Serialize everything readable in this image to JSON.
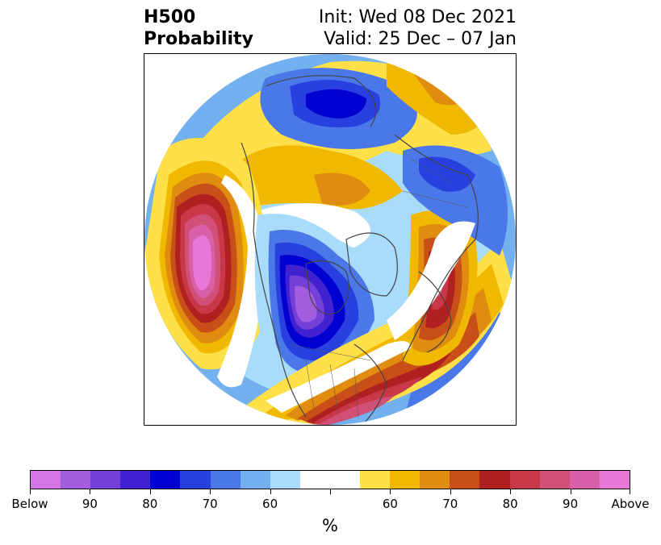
{
  "title": {
    "left_line1": "H500",
    "left_line2": "Probability",
    "right_line1": "Init: Wed 08 Dec 2021",
    "right_line2": "Valid: 25 Dec – 07 Jan"
  },
  "colorbar": {
    "unit": "%",
    "tick_labels": [
      "Below",
      "90",
      "80",
      "70",
      "60",
      "",
      "60",
      "70",
      "80",
      "90",
      "Above"
    ],
    "colors": [
      "#d575e8",
      "#a35ee0",
      "#7540d8",
      "#4222d0",
      "#0000d0",
      "#2840e0",
      "#4a78e8",
      "#72b0f0",
      "#a8dcfa",
      "#ffffff",
      "#ffffff",
      "#ffe048",
      "#f0b800",
      "#e08c10",
      "#c85018",
      "#b02020",
      "#c83848",
      "#d05078",
      "#d860a8",
      "#e878d8"
    ]
  },
  "colors": {
    "below_strong": "#d575e8",
    "below": "#0000d0",
    "above": "#b02020",
    "above_strong": "#e878d8",
    "neutral": "#ffffff",
    "coastline": "#444444"
  }
}
